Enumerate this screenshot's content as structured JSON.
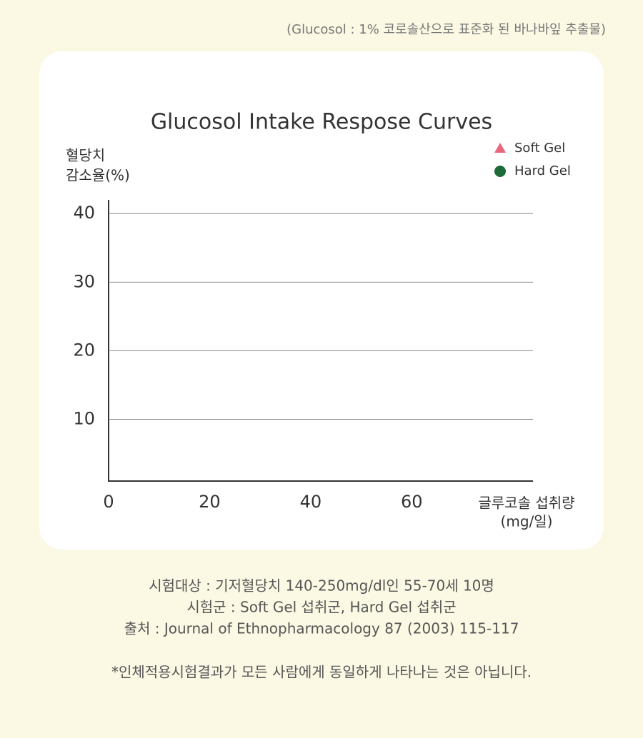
{
  "header_note": "(Glucosol : 1% 코로솔산으로 표준화 된 바나바잎 추출물)",
  "chart_data": {
    "type": "scatter",
    "title": "Glucosol Intake Respose Curves",
    "ylabel": [
      "혈당치",
      "감소율(%)"
    ],
    "xlabel": [
      "글루코솔 섭취량",
      "(mg/일)"
    ],
    "series": [
      {
        "name": "Soft Gel",
        "color": "#e8677f",
        "marker": "triangle"
      },
      {
        "name": "Hard Gel",
        "color": "#1e6b3a",
        "marker": "circle"
      }
    ],
    "xlim": [
      0,
      84
    ],
    "xticks": [
      0,
      20,
      40,
      60
    ],
    "ylim": [
      1,
      42
    ],
    "yticks": [
      10,
      20,
      30,
      40
    ],
    "grid": true,
    "legend": "upper right"
  },
  "footer": {
    "lines": [
      "시험대상 : 기저혈당치 140-250mg/dl인 55-70세 10명",
      "시험군 : Soft Gel 섭취군, Hard Gel 섭취군",
      "출처 : Journal of Ethnopharmacology 87 (2003) 115-117"
    ],
    "disclaimer": "*인체적용시험결과가 모든 사람에게 동일하게 나타나는 것은 아닙니다."
  }
}
